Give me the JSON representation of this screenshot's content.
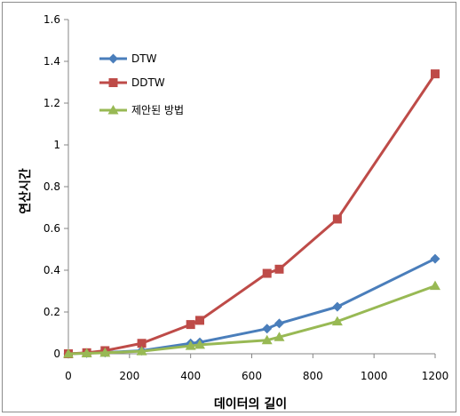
{
  "chart_data": {
    "type": "line",
    "xlabel": "데이터의 길이",
    "ylabel": "연산시간",
    "xlim": [
      0,
      1200
    ],
    "ylim": [
      0,
      1.6
    ],
    "x_ticks": [
      "0",
      "200",
      "400",
      "600",
      "800",
      "1000",
      "1200"
    ],
    "y_ticks": [
      "0",
      "0.2",
      "0.4",
      "0.6",
      "0.8",
      "1",
      "1.2",
      "1.4",
      "1.6"
    ],
    "grid": false,
    "legend_position": "top-left",
    "series": [
      {
        "name": "DTW",
        "color": "#4a7ebb",
        "marker": "diamond",
        "points": [
          [
            0,
            0
          ],
          [
            60,
            0.003
          ],
          [
            120,
            0.006
          ],
          [
            240,
            0.015
          ],
          [
            400,
            0.05
          ],
          [
            430,
            0.055
          ],
          [
            650,
            0.12
          ],
          [
            690,
            0.145
          ],
          [
            880,
            0.225
          ],
          [
            1200,
            0.455
          ]
        ]
      },
      {
        "name": "DDTW",
        "color": "#be4b48",
        "marker": "square",
        "points": [
          [
            0,
            0
          ],
          [
            60,
            0.005
          ],
          [
            120,
            0.015
          ],
          [
            240,
            0.05
          ],
          [
            400,
            0.14
          ],
          [
            430,
            0.16
          ],
          [
            650,
            0.385
          ],
          [
            690,
            0.405
          ],
          [
            880,
            0.645
          ],
          [
            1200,
            1.34
          ]
        ]
      },
      {
        "name": "제안된 방법",
        "color": "#98b954",
        "marker": "triangle",
        "points": [
          [
            0,
            0
          ],
          [
            60,
            0.002
          ],
          [
            120,
            0.005
          ],
          [
            240,
            0.012
          ],
          [
            400,
            0.038
          ],
          [
            430,
            0.043
          ],
          [
            650,
            0.065
          ],
          [
            690,
            0.08
          ],
          [
            880,
            0.155
          ],
          [
            1200,
            0.325
          ]
        ]
      }
    ]
  }
}
